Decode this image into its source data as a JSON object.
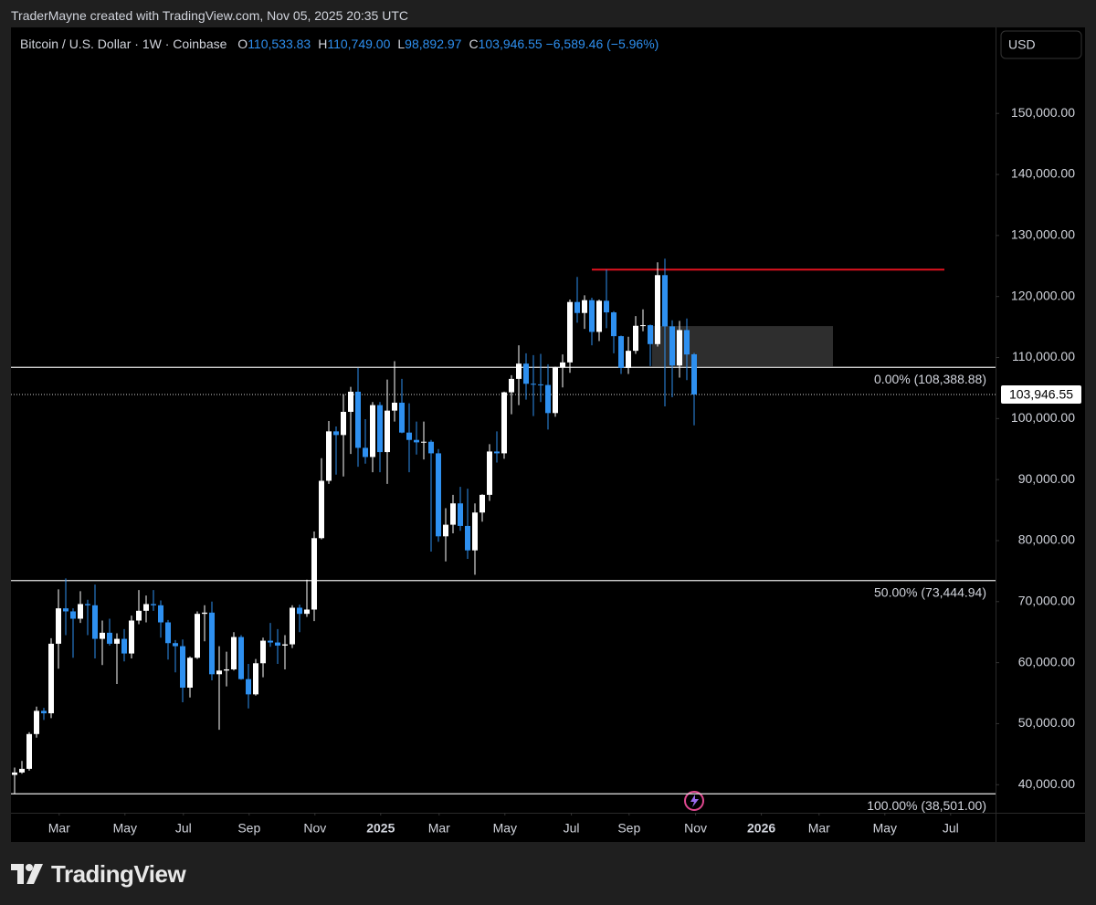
{
  "credit": "TraderMayne created with TradingView.com, Nov 05, 2025 20:35 UTC",
  "brand": "TradingView",
  "chart_data": {
    "type": "candlestick",
    "title": "Bitcoin / U.S. Dollar · 1W · Coinbase",
    "ohlc_labels": [
      {
        "key": "O",
        "text": "110,533.83"
      },
      {
        "key": "H",
        "text": "110,749.00"
      },
      {
        "key": "L",
        "text": "98,892.97"
      },
      {
        "key": "C",
        "text": "103,946.55"
      }
    ],
    "change": "−6,589.46 (−5.96%)",
    "currency": "USD",
    "up_color": "#ffffff",
    "down_color": "#2e90f0",
    "open": [
      41600,
      42000,
      42600,
      48300,
      52100,
      51700,
      63100,
      68900,
      68400,
      67200,
      69600,
      69400,
      63900,
      64900,
      63100,
      63900,
      61500,
      66900,
      68500,
      69600,
      69400,
      66600,
      63200,
      62700,
      55900,
      60800,
      68000,
      68200,
      58100,
      58700,
      58900,
      64200,
      57300,
      54800,
      59900,
      63600,
      63300,
      62800,
      63000,
      69000,
      68000,
      68700,
      80400,
      89800,
      97900,
      97300,
      101100,
      104400,
      95200,
      93700,
      102200,
      94500,
      101300,
      102600,
      97700,
      96500,
      96100,
      96200,
      94300,
      80700,
      82600,
      86100,
      82400,
      78400,
      84600,
      87500,
      94600,
      94300,
      104300,
      106500,
      109000,
      105700,
      105600,
      105500,
      100900,
      108400,
      109200,
      119100,
      117300,
      119400,
      114200,
      119300,
      117400,
      113500,
      108300,
      111100,
      115200,
      115300,
      112200,
      123500,
      115100,
      108700,
      114500,
      110533.83
    ],
    "high": [
      42800,
      43900,
      48600,
      52800,
      52600,
      64000,
      72000,
      73800,
      68900,
      71700,
      70300,
      72800,
      66900,
      67200,
      64800,
      65500,
      67700,
      71900,
      71000,
      71900,
      70200,
      67000,
      63700,
      63800,
      61000,
      68400,
      69400,
      70000,
      62700,
      61800,
      65000,
      64500,
      59800,
      60600,
      64100,
      66500,
      65500,
      64500,
      69400,
      69500,
      73600,
      81500,
      93500,
      99600,
      98700,
      104000,
      105200,
      108300,
      99900,
      102700,
      102700,
      106400,
      109400,
      106500,
      102500,
      99500,
      99500,
      96500,
      95000,
      85300,
      87500,
      88800,
      88500,
      86100,
      87600,
      95800,
      97900,
      104400,
      107100,
      112000,
      110700,
      110400,
      110600,
      108900,
      108500,
      110500,
      119500,
      123200,
      120200,
      119800,
      119500,
      124400,
      117600,
      113600,
      113400,
      116800,
      117900,
      115400,
      125600,
      126200,
      116100,
      116000,
      116400,
      110749
    ],
    "low": [
      38501,
      41800,
      42300,
      47700,
      50600,
      50900,
      59000,
      64500,
      60800,
      66500,
      64500,
      60700,
      59600,
      62800,
      56500,
      60200,
      60700,
      66300,
      66600,
      68500,
      64100,
      60500,
      58400,
      53500,
      54300,
      60600,
      63500,
      57100,
      49000,
      56100,
      58700,
      57200,
      52500,
      54600,
      57600,
      62600,
      59800,
      58900,
      62400,
      65000,
      67500,
      66800,
      80200,
      89300,
      90800,
      90500,
      94200,
      92100,
      92600,
      91200,
      91200,
      89300,
      99500,
      97600,
      91200,
      94100,
      93300,
      78200,
      79800,
      76600,
      81200,
      81600,
      77000,
      74400,
      83100,
      86500,
      92800,
      93400,
      100700,
      102200,
      103100,
      100400,
      102700,
      98200,
      100300,
      105100,
      107500,
      115700,
      114700,
      112000,
      112700,
      114800,
      110700,
      107300,
      107300,
      110600,
      114300,
      108600,
      111800,
      102000,
      103500,
      106700,
      106300,
      98892.97
    ],
    "close": [
      42000,
      42600,
      48300,
      52100,
      51700,
      63100,
      68900,
      68400,
      67200,
      69600,
      69400,
      63900,
      64900,
      63100,
      63900,
      61500,
      66900,
      68500,
      69600,
      69400,
      66600,
      63200,
      62700,
      55900,
      60800,
      68000,
      68200,
      58100,
      58700,
      58900,
      64200,
      57300,
      54800,
      59900,
      63600,
      63300,
      62800,
      63000,
      69000,
      68000,
      68700,
      80400,
      89800,
      97900,
      97300,
      101100,
      104400,
      95200,
      93700,
      102200,
      94500,
      101300,
      102600,
      97700,
      96500,
      96100,
      96200,
      94300,
      80700,
      82600,
      86100,
      82400,
      78400,
      84600,
      87500,
      94600,
      94300,
      104300,
      106500,
      109000,
      105700,
      105600,
      105500,
      100900,
      108400,
      109200,
      119100,
      117300,
      119400,
      114200,
      119300,
      117400,
      113500,
      108300,
      111100,
      115200,
      115300,
      112200,
      123500,
      115100,
      108700,
      114500,
      110500,
      103946.55
    ],
    "xlim": [
      -0.5,
      134.25
    ],
    "xticks": [
      {
        "value": 6.1,
        "label": "Mar"
      },
      {
        "value": 15.1,
        "label": "May"
      },
      {
        "value": 23.1,
        "label": "Jul"
      },
      {
        "value": 32.1,
        "label": "Sep"
      },
      {
        "value": 41.1,
        "label": "Nov"
      },
      {
        "value": 50.1,
        "label": "2025"
      },
      {
        "value": 58.1,
        "label": "Mar"
      },
      {
        "value": 67.1,
        "label": "May"
      },
      {
        "value": 76.2,
        "label": "Jul"
      },
      {
        "value": 84.1,
        "label": "Sep"
      },
      {
        "value": 93.2,
        "label": "Nov"
      },
      {
        "value": 102.2,
        "label": "2026"
      },
      {
        "value": 110.1,
        "label": "Mar"
      },
      {
        "value": 119.1,
        "label": "May"
      },
      {
        "value": 128.1,
        "label": "Jul"
      }
    ],
    "ylim": [
      35400,
      164100
    ],
    "yticks": [
      {
        "value": 40000,
        "label": "40,000.00"
      },
      {
        "value": 50000,
        "label": "50,000.00"
      },
      {
        "value": 60000,
        "label": "60,000.00"
      },
      {
        "value": 70000,
        "label": "70,000.00"
      },
      {
        "value": 80000,
        "label": "80,000.00"
      },
      {
        "value": 90000,
        "label": "90,000.00"
      },
      {
        "value": 100000,
        "label": "100,000.00"
      },
      {
        "value": 110000,
        "label": "110,000.00"
      },
      {
        "value": 120000,
        "label": "120,000.00"
      },
      {
        "value": 130000,
        "label": "130,000.00"
      },
      {
        "value": 140000,
        "label": "140,000.00"
      },
      {
        "value": 150000,
        "label": "150,000.00"
      }
    ],
    "last_price": {
      "value": 103946.55,
      "label": "103,946.55"
    },
    "levels": [
      {
        "value": 108388.88,
        "label": "0.00% (108,388.88)"
      },
      {
        "value": 73444.94,
        "label": "50.00% (73,444.94)"
      },
      {
        "value": 38501,
        "label": "100.00% (38,501.00)"
      }
    ],
    "resistance": {
      "value": 124400,
      "from": 79,
      "to": 127.25,
      "color": "#e0131f"
    },
    "zone": {
      "low": 108560,
      "high": 115150,
      "from": 87.25,
      "to": 112,
      "color": "#333333"
    }
  }
}
